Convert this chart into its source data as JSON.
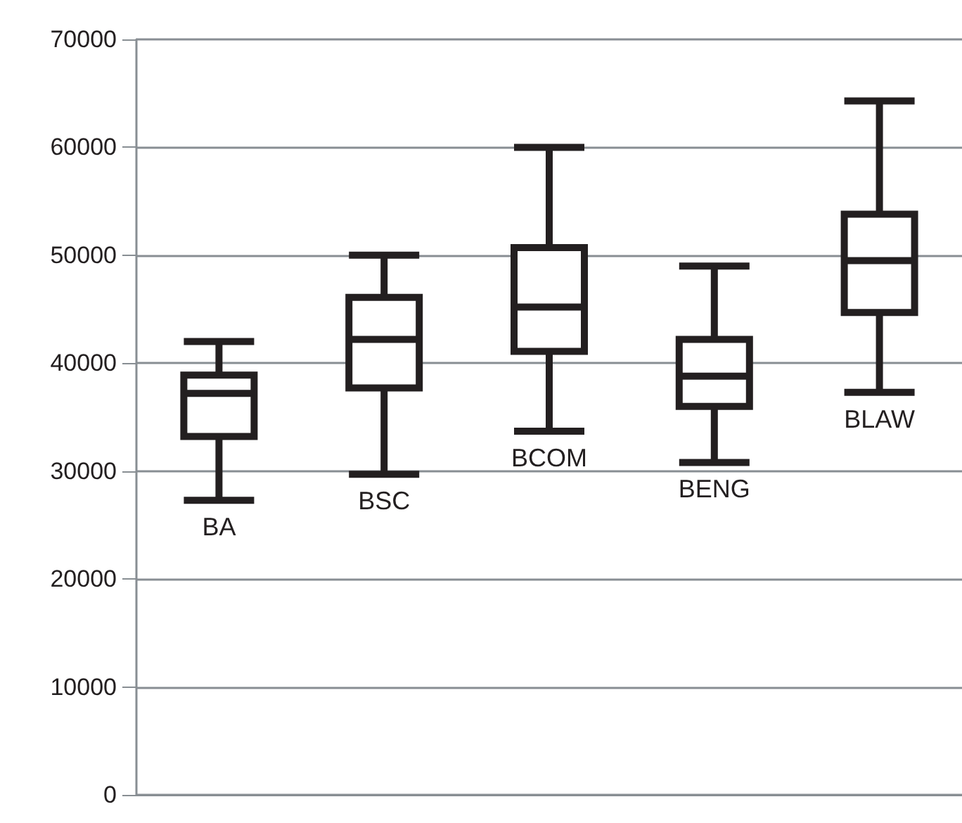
{
  "chart_data": {
    "type": "box",
    "categories": [
      "BA",
      "BSC",
      "BCOM",
      "BENG",
      "BLAW"
    ],
    "boxes": [
      {
        "low": 27300,
        "q1": 33200,
        "median": 37200,
        "q3": 38900,
        "high": 42000
      },
      {
        "low": 29700,
        "q1": 37700,
        "median": 42200,
        "q3": 46100,
        "high": 50000
      },
      {
        "low": 33700,
        "q1": 41100,
        "median": 45200,
        "q3": 50700,
        "high": 60000
      },
      {
        "low": 30800,
        "q1": 36000,
        "median": 38800,
        "q3": 42200,
        "high": 49000
      },
      {
        "low": 37300,
        "q1": 44700,
        "median": 49500,
        "q3": 53800,
        "high": 64300
      }
    ],
    "color": "#231f20",
    "ylim": [
      0,
      70000
    ],
    "yticks": [
      0,
      10000,
      20000,
      30000,
      40000,
      50000,
      60000,
      70000
    ],
    "grid": "y",
    "tick_labels": "y"
  }
}
